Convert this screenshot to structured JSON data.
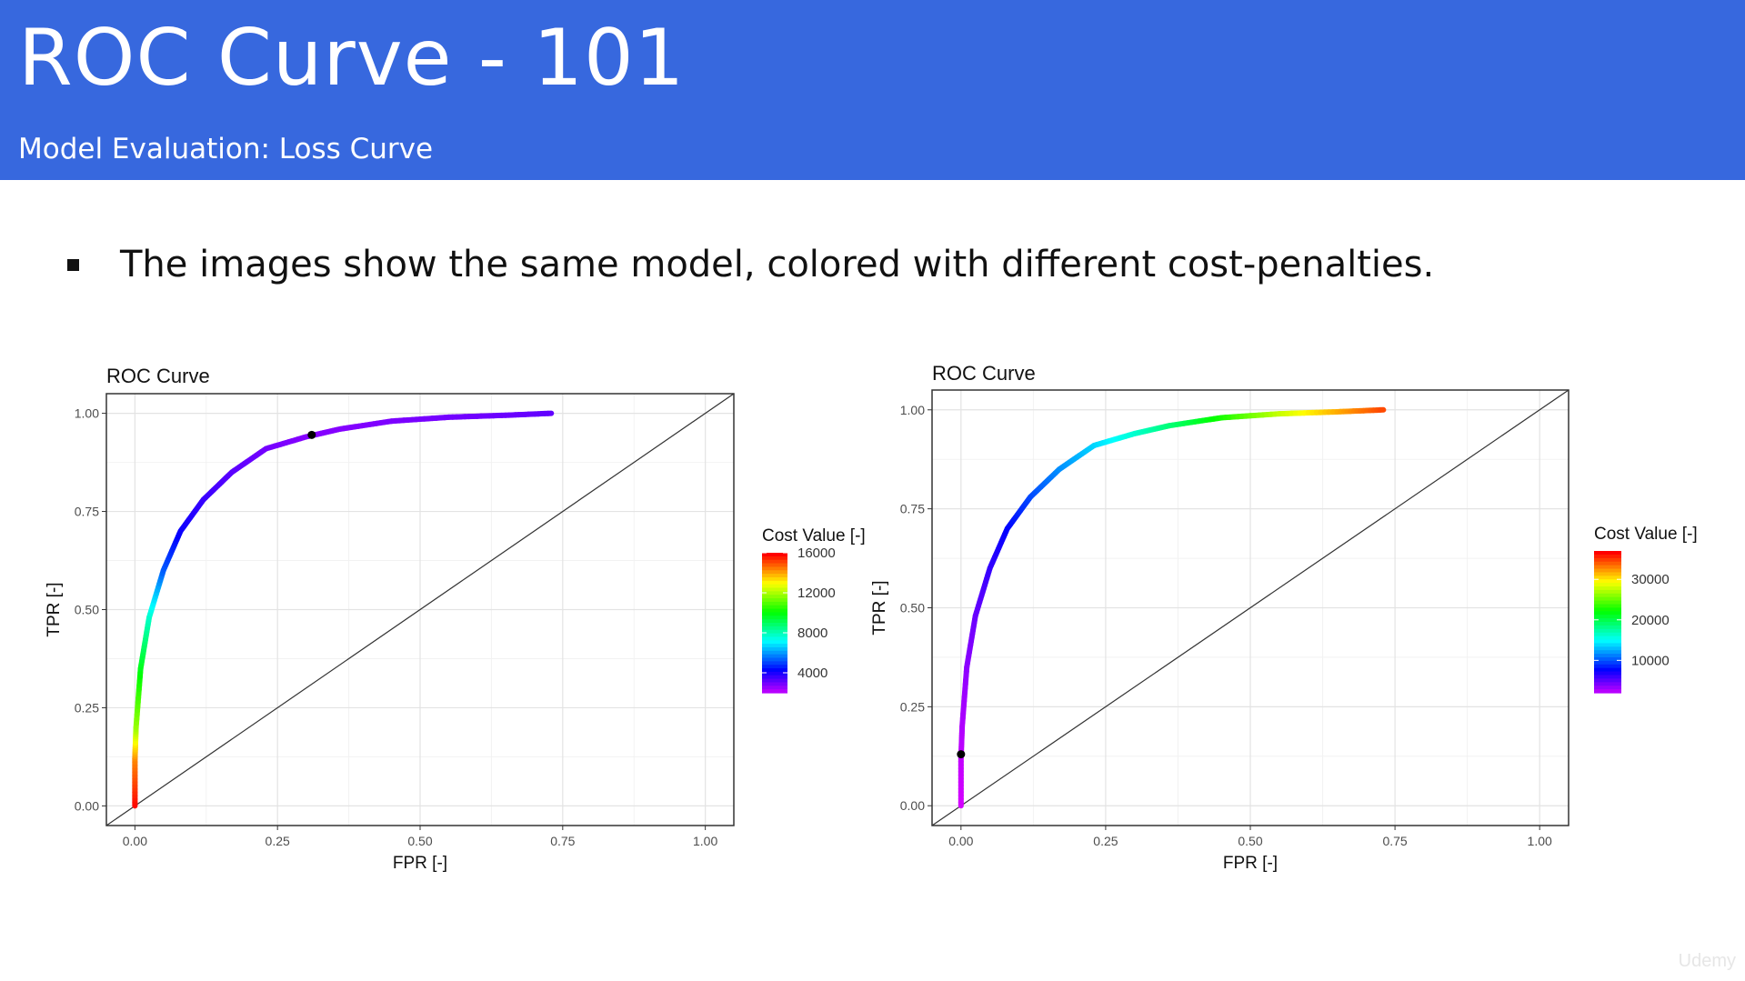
{
  "header": {
    "title": "ROC Curve - 101",
    "subtitle": "Model Evaluation: Loss Curve",
    "background_color": "#3768de"
  },
  "content": {
    "bullet_text": "The images show the same model, colored with different cost-penalties."
  },
  "watermark": "Udemy",
  "chart_data": [
    {
      "type": "line",
      "title": "ROC Curve",
      "xlabel": "FPR [-]",
      "ylabel": "TPR [-]",
      "xlim": [
        -0.05,
        1.05
      ],
      "ylim": [
        -0.05,
        1.05
      ],
      "x_ticks": [
        "0.00",
        "0.25",
        "0.50",
        "0.75",
        "1.00"
      ],
      "y_ticks": [
        "0.00",
        "0.25",
        "0.50",
        "0.75",
        "1.00"
      ],
      "grid": true,
      "diagonal_reference": true,
      "color_scale": "rainbow",
      "legend": {
        "title": "Cost Value [-]",
        "placement": "right",
        "min": 2000,
        "max": 16000,
        "ticks": [
          "4000",
          "8000",
          "12000",
          "16000"
        ]
      },
      "series": [
        {
          "x": [
            0.0,
            0.0,
            0.002,
            0.01,
            0.025,
            0.05,
            0.08,
            0.12,
            0.17,
            0.23,
            0.3,
            0.36,
            0.45,
            0.55,
            0.65,
            0.73
          ],
          "y": [
            0.0,
            0.12,
            0.2,
            0.35,
            0.48,
            0.6,
            0.7,
            0.78,
            0.85,
            0.91,
            0.94,
            0.96,
            0.98,
            0.99,
            0.995,
            1.0
          ],
          "cost": [
            16000,
            14500,
            12000,
            10000,
            8000,
            5500,
            4300,
            3800,
            3400,
            3100,
            2900,
            2900,
            3000,
            3100,
            3200,
            3300
          ]
        }
      ],
      "highlight_point": {
        "x": 0.31,
        "y": 0.945
      }
    },
    {
      "type": "line",
      "title": "ROC Curve",
      "xlabel": "FPR [-]",
      "ylabel": "TPR [-]",
      "xlim": [
        -0.05,
        1.05
      ],
      "ylim": [
        -0.05,
        1.05
      ],
      "x_ticks": [
        "0.00",
        "0.25",
        "0.50",
        "0.75",
        "1.00"
      ],
      "y_ticks": [
        "0.00",
        "0.25",
        "0.50",
        "0.75",
        "1.00"
      ],
      "grid": true,
      "diagonal_reference": true,
      "color_scale": "rainbow",
      "legend": {
        "title": "Cost Value [-]",
        "placement": "right",
        "min": 2000,
        "max": 37000,
        "ticks": [
          "10000",
          "20000",
          "30000"
        ]
      },
      "series": [
        {
          "x": [
            0.0,
            0.0,
            0.002,
            0.01,
            0.025,
            0.05,
            0.08,
            0.12,
            0.17,
            0.23,
            0.3,
            0.36,
            0.45,
            0.55,
            0.65,
            0.73
          ],
          "y": [
            0.0,
            0.12,
            0.2,
            0.35,
            0.48,
            0.6,
            0.7,
            0.78,
            0.85,
            0.91,
            0.94,
            0.96,
            0.98,
            0.99,
            0.995,
            1.0
          ],
          "cost": [
            2000,
            2500,
            3000,
            4000,
            5000,
            6500,
            8000,
            10000,
            12000,
            14000,
            16500,
            19000,
            23000,
            28000,
            32000,
            35000
          ]
        }
      ],
      "highlight_point": {
        "x": 0.0,
        "y": 0.13
      }
    }
  ]
}
